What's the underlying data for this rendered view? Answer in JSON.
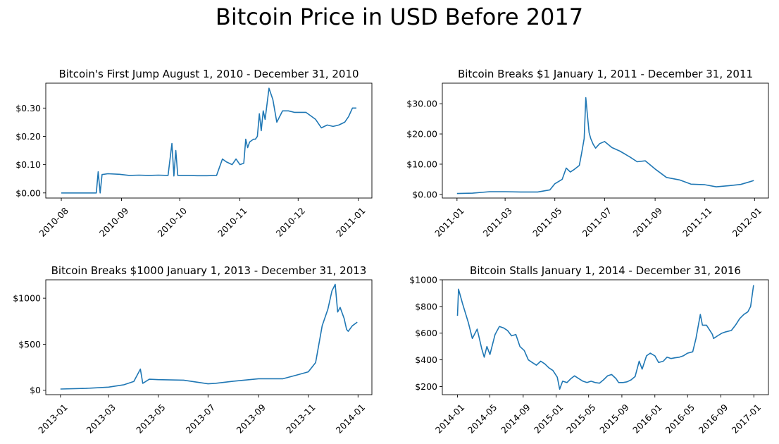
{
  "figure": {
    "suptitle": "Bitcoin Price in USD Before 2017"
  },
  "colors": {
    "line": "#1f77b4",
    "axes": "#000000",
    "background": "#ffffff"
  },
  "chart_data": [
    {
      "type": "line",
      "title": "Bitcoin's First Jump August 1, 2010 - December 31, 2010",
      "xlabel": "",
      "ylabel": "",
      "grid": false,
      "legend": "none",
      "x_axis": "date",
      "xlim": [
        "2010-07-24",
        "2011-01-08"
      ],
      "ylim": [
        -0.018,
        0.388
      ],
      "xticks": [
        "2010-08-01",
        "2010-09-01",
        "2010-10-01",
        "2010-11-01",
        "2010-12-01",
        "2011-01-01"
      ],
      "xtick_labels": [
        "2010-08",
        "2010-09",
        "2010-10",
        "2010-11",
        "2010-12",
        "2011-01"
      ],
      "yticks": [
        0,
        0.1,
        0.2,
        0.3
      ],
      "ytick_labels": [
        "$0.00",
        "$0.10",
        "$0.20",
        "$0.30"
      ],
      "series": [
        {
          "x": [
            "2010-08-01",
            "2010-08-10",
            "2010-08-19",
            "2010-08-20",
            "2010-08-21",
            "2010-08-22",
            "2010-08-25",
            "2010-08-31",
            "2010-09-05",
            "2010-09-10",
            "2010-09-15",
            "2010-09-20",
            "2010-09-25",
            "2010-09-27",
            "2010-09-28",
            "2010-09-29",
            "2010-09-30",
            "2010-10-01",
            "2010-10-05",
            "2010-10-10",
            "2010-10-15",
            "2010-10-20",
            "2010-10-23",
            "2010-10-25",
            "2010-10-28",
            "2010-10-30",
            "2010-11-01",
            "2010-11-03",
            "2010-11-04",
            "2010-11-05",
            "2010-11-06",
            "2010-11-08",
            "2010-11-09",
            "2010-11-10",
            "2010-11-11",
            "2010-11-12",
            "2010-11-13",
            "2010-11-14",
            "2010-11-16",
            "2010-11-18",
            "2010-11-20",
            "2010-11-23",
            "2010-11-26",
            "2010-11-29",
            "2010-12-02",
            "2010-12-05",
            "2010-12-08",
            "2010-12-10",
            "2010-12-13",
            "2010-12-16",
            "2010-12-19",
            "2010-12-22",
            "2010-12-25",
            "2010-12-27",
            "2010-12-29",
            "2010-12-31"
          ],
          "y": [
            0.0,
            0.0,
            0.0,
            0.075,
            0.0,
            0.065,
            0.068,
            0.066,
            0.062,
            0.063,
            0.062,
            0.063,
            0.062,
            0.175,
            0.06,
            0.15,
            0.062,
            0.062,
            0.062,
            0.061,
            0.061,
            0.062,
            0.12,
            0.11,
            0.1,
            0.12,
            0.1,
            0.105,
            0.19,
            0.16,
            0.18,
            0.19,
            0.19,
            0.2,
            0.28,
            0.22,
            0.29,
            0.26,
            0.37,
            0.33,
            0.25,
            0.29,
            0.29,
            0.285,
            0.285,
            0.285,
            0.27,
            0.26,
            0.23,
            0.24,
            0.235,
            0.24,
            0.25,
            0.27,
            0.3,
            0.3
          ]
        }
      ]
    },
    {
      "type": "line",
      "title": "Bitcoin Breaks $1 January 1, 2011 - December 31, 2011",
      "xlabel": "",
      "ylabel": "",
      "grid": false,
      "legend": "none",
      "x_axis": "date",
      "xlim": [
        "2010-12-14",
        "2012-01-18"
      ],
      "ylim": [
        -1.2,
        36.8
      ],
      "xticks": [
        "2011-01-01",
        "2011-03-01",
        "2011-05-01",
        "2011-07-01",
        "2011-09-01",
        "2011-11-01",
        "2012-01-01"
      ],
      "xtick_labels": [
        "2011-01",
        "2011-03",
        "2011-05",
        "2011-07",
        "2011-09",
        "2011-11",
        "2012-01"
      ],
      "yticks": [
        0,
        10,
        20,
        30
      ],
      "ytick_labels": [
        "$0.00",
        "$10.00",
        "$20.00",
        "$30.00"
      ],
      "series": [
        {
          "x": [
            "2011-01-01",
            "2011-01-20",
            "2011-02-10",
            "2011-03-01",
            "2011-03-20",
            "2011-04-10",
            "2011-04-25",
            "2011-05-01",
            "2011-05-10",
            "2011-05-15",
            "2011-05-20",
            "2011-05-25",
            "2011-05-31",
            "2011-06-03",
            "2011-06-06",
            "2011-06-08",
            "2011-06-10",
            "2011-06-12",
            "2011-06-14",
            "2011-06-17",
            "2011-06-20",
            "2011-06-25",
            "2011-07-01",
            "2011-07-10",
            "2011-07-20",
            "2011-08-01",
            "2011-08-10",
            "2011-08-20",
            "2011-09-01",
            "2011-09-15",
            "2011-10-01",
            "2011-10-15",
            "2011-11-01",
            "2011-11-15",
            "2011-12-01",
            "2011-12-15",
            "2011-12-25",
            "2011-12-31"
          ],
          "y": [
            0.3,
            0.4,
            0.9,
            0.9,
            0.8,
            0.8,
            1.5,
            3.5,
            5,
            8.7,
            7.4,
            8.3,
            9.6,
            13.8,
            18.5,
            32,
            26.2,
            20.4,
            18.5,
            16.6,
            15.3,
            16.8,
            17.5,
            15.5,
            14.3,
            12.4,
            10.8,
            11.1,
            8.4,
            5.6,
            4.8,
            3.4,
            3.2,
            2.5,
            2.9,
            3.3,
            4.1,
            4.6
          ]
        }
      ]
    },
    {
      "type": "line",
      "title": "Bitcoin Breaks $1000 January 1, 2013 - December 31, 2013",
      "xlabel": "",
      "ylabel": "",
      "grid": false,
      "legend": "none",
      "x_axis": "date",
      "xlim": [
        "2012-12-14",
        "2014-01-18"
      ],
      "ylim": [
        -48,
        1200
      ],
      "xticks": [
        "2013-01-01",
        "2013-03-01",
        "2013-05-01",
        "2013-07-01",
        "2013-09-01",
        "2013-11-01",
        "2014-01-01"
      ],
      "xtick_labels": [
        "2013-01",
        "2013-03",
        "2013-05",
        "2013-07",
        "2013-09",
        "2013-11",
        "2014-01"
      ],
      "yticks": [
        0,
        500,
        1000
      ],
      "ytick_labels": [
        "$0",
        "$500",
        "$1000"
      ],
      "series": [
        {
          "x": [
            "2013-01-01",
            "2013-02-01",
            "2013-03-01",
            "2013-03-20",
            "2013-04-01",
            "2013-04-09",
            "2013-04-12",
            "2013-04-20",
            "2013-05-01",
            "2013-06-01",
            "2013-07-01",
            "2013-07-10",
            "2013-08-01",
            "2013-09-01",
            "2013-10-01",
            "2013-10-20",
            "2013-11-01",
            "2013-11-10",
            "2013-11-18",
            "2013-11-25",
            "2013-11-30",
            "2013-12-04",
            "2013-12-07",
            "2013-12-10",
            "2013-12-15",
            "2013-12-18",
            "2013-12-20",
            "2013-12-25",
            "2013-12-31"
          ],
          "y": [
            13,
            20,
            34,
            60,
            95,
            230,
            75,
            120,
            115,
            110,
            70,
            75,
            98,
            125,
            125,
            170,
            200,
            300,
            700,
            880,
            1080,
            1150,
            850,
            900,
            780,
            660,
            640,
            700,
            740
          ]
        }
      ]
    },
    {
      "type": "line",
      "title": "Bitcoin Stalls January 1, 2014 - December 31, 2016",
      "xlabel": "",
      "ylabel": "",
      "grid": false,
      "legend": "none",
      "x_axis": "date",
      "xlim": [
        "2013-11-06",
        "2017-02-24"
      ],
      "ylim": [
        139,
        1000
      ],
      "xticks": [
        "2014-01-01",
        "2014-05-01",
        "2014-09-01",
        "2015-01-01",
        "2015-05-01",
        "2015-09-01",
        "2016-01-01",
        "2016-05-01",
        "2016-09-01",
        "2017-01-01"
      ],
      "xtick_labels": [
        "2014-01",
        "2014-05",
        "2014-09",
        "2015-01",
        "2015-05",
        "2015-09",
        "2016-01",
        "2016-05",
        "2016-09",
        "2017-01"
      ],
      "yticks": [
        200,
        400,
        600,
        800,
        1000
      ],
      "ytick_labels": [
        "$200",
        "$400",
        "$600",
        "$800",
        "$1000"
      ],
      "series": [
        {
          "x": [
            "2014-01-01",
            "2014-01-05",
            "2014-01-20",
            "2014-02-10",
            "2014-02-25",
            "2014-03-15",
            "2014-04-01",
            "2014-04-10",
            "2014-04-20",
            "2014-05-01",
            "2014-05-20",
            "2014-06-05",
            "2014-06-20",
            "2014-07-05",
            "2014-07-20",
            "2014-08-05",
            "2014-08-20",
            "2014-09-05",
            "2014-09-20",
            "2014-10-05",
            "2014-10-20",
            "2014-11-05",
            "2014-11-20",
            "2014-12-05",
            "2014-12-20",
            "2015-01-05",
            "2015-01-14",
            "2015-01-25",
            "2015-02-10",
            "2015-02-25",
            "2015-03-10",
            "2015-03-25",
            "2015-04-10",
            "2015-04-25",
            "2015-05-10",
            "2015-05-25",
            "2015-06-10",
            "2015-06-25",
            "2015-07-10",
            "2015-07-25",
            "2015-08-10",
            "2015-08-20",
            "2015-09-05",
            "2015-09-20",
            "2015-10-05",
            "2015-10-20",
            "2015-11-04",
            "2015-11-15",
            "2015-12-01",
            "2015-12-15",
            "2016-01-01",
            "2016-01-15",
            "2016-02-01",
            "2016-02-15",
            "2016-03-01",
            "2016-03-15",
            "2016-04-01",
            "2016-04-15",
            "2016-05-01",
            "2016-05-20",
            "2016-06-01",
            "2016-06-17",
            "2016-06-25",
            "2016-07-10",
            "2016-08-01",
            "2016-08-05",
            "2016-08-20",
            "2016-09-05",
            "2016-09-20",
            "2016-10-10",
            "2016-10-25",
            "2016-11-10",
            "2016-11-25",
            "2016-12-10",
            "2016-12-20",
            "2016-12-31"
          ],
          "y": [
            730,
            930,
            820,
            680,
            560,
            630,
            480,
            420,
            500,
            440,
            590,
            650,
            640,
            620,
            580,
            590,
            500,
            470,
            400,
            380,
            360,
            390,
            370,
            340,
            320,
            270,
            180,
            240,
            230,
            260,
            280,
            260,
            240,
            230,
            240,
            230,
            225,
            250,
            280,
            290,
            260,
            230,
            230,
            235,
            250,
            275,
            390,
            330,
            430,
            450,
            430,
            380,
            390,
            420,
            410,
            415,
            420,
            430,
            450,
            460,
            560,
            740,
            660,
            660,
            590,
            560,
            580,
            600,
            610,
            620,
            660,
            710,
            740,
            760,
            800,
            960
          ]
        }
      ]
    }
  ]
}
